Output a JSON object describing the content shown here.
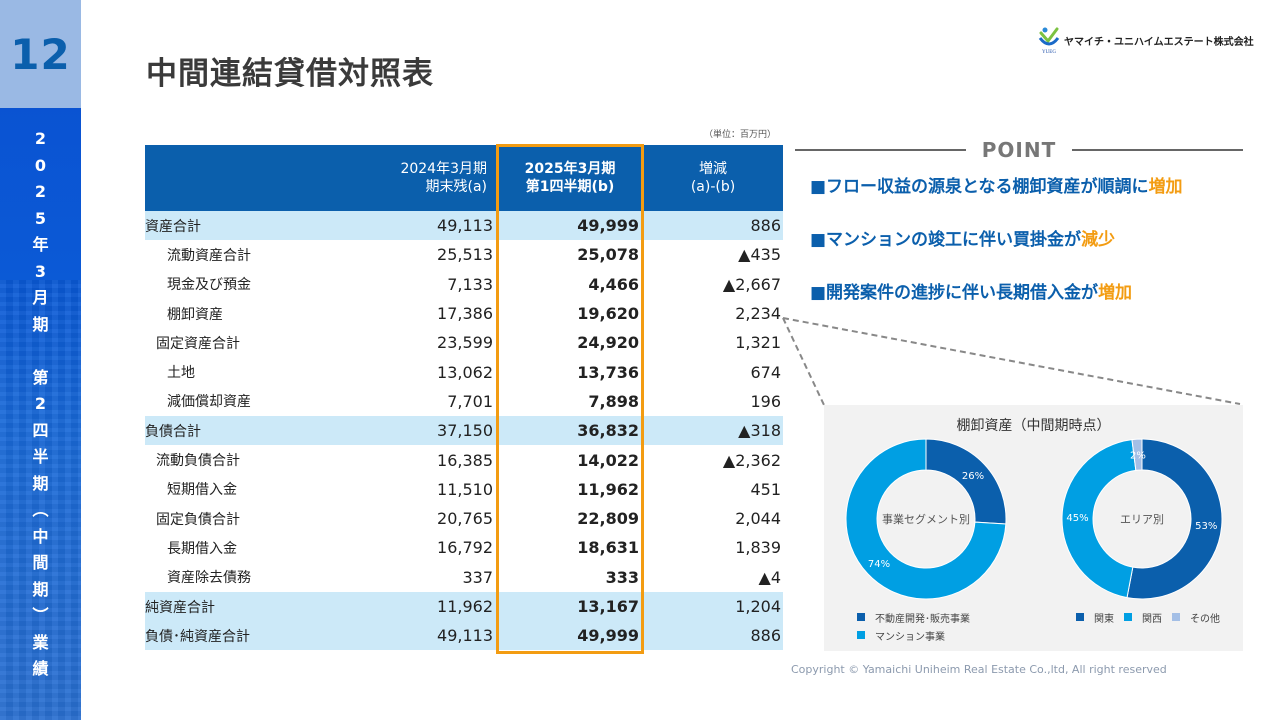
{
  "sidebar": {
    "page_number": "12",
    "vertical_chars": [
      "2",
      "0",
      "2",
      "5",
      "年",
      "3",
      "月",
      "期",
      "",
      "第",
      "2",
      "四",
      "半",
      "期",
      "︵",
      "中",
      "間",
      "期",
      "︶",
      "業",
      "績"
    ]
  },
  "header": {
    "title": "中間連結貸借対照表",
    "company_name": "ヤマイチ・ユニハイムエステート株式会社",
    "logo_text": "YUEG"
  },
  "table": {
    "unit": "（単位：百万円）",
    "headers": {
      "a_line1": "2024年3月期",
      "a_line2": "期末残(a)",
      "b_line1": "2025年3月期",
      "b_line2": "第1四半期(b)",
      "c_line1": "増減",
      "c_line2": "(a)-(b)"
    },
    "rows": [
      {
        "label": "資産合計",
        "level": 0,
        "shade": true,
        "a": "49,113",
        "b": "49,999",
        "c": "886"
      },
      {
        "label": "流動資産合計",
        "level": 2,
        "shade": false,
        "a": "25,513",
        "b": "25,078",
        "c": "▲435"
      },
      {
        "label": "現金及び預金",
        "level": 2,
        "shade": false,
        "a": "7,133",
        "b": "4,466",
        "c": "▲2,667"
      },
      {
        "label": "棚卸資産",
        "level": 2,
        "shade": false,
        "a": "17,386",
        "b": "19,620",
        "c": "2,234"
      },
      {
        "label": "固定資産合計",
        "level": 1,
        "shade": false,
        "a": "23,599",
        "b": "24,920",
        "c": "1,321"
      },
      {
        "label": "土地",
        "level": 2,
        "shade": false,
        "a": "13,062",
        "b": "13,736",
        "c": "674"
      },
      {
        "label": "減価償却資産",
        "level": 2,
        "shade": false,
        "a": "7,701",
        "b": "7,898",
        "c": "196"
      },
      {
        "label": "負債合計",
        "level": 0,
        "shade": true,
        "a": "37,150",
        "b": "36,832",
        "c": "▲318"
      },
      {
        "label": "流動負債合計",
        "level": 1,
        "shade": false,
        "a": "16,385",
        "b": "14,022",
        "c": "▲2,362"
      },
      {
        "label": "短期借入金",
        "level": 2,
        "shade": false,
        "a": "11,510",
        "b": "11,962",
        "c": "451"
      },
      {
        "label": "固定負債合計",
        "level": 1,
        "shade": false,
        "a": "20,765",
        "b": "22,809",
        "c": "2,044"
      },
      {
        "label": "長期借入金",
        "level": 2,
        "shade": false,
        "a": "16,792",
        "b": "18,631",
        "c": "1,839"
      },
      {
        "label": "資産除去債務",
        "level": 2,
        "shade": false,
        "a": "337",
        "b": "333",
        "c": "▲4"
      },
      {
        "label": "純資産合計",
        "level": 0,
        "shade": true,
        "a": "11,962",
        "b": "13,167",
        "c": "1,204"
      },
      {
        "label": "負債･純資産合計",
        "level": 0,
        "shade": true,
        "a": "49,113",
        "b": "49,999",
        "c": "886"
      }
    ]
  },
  "point": {
    "title": "POINT",
    "items": [
      {
        "prefix": "■フロー収益の源泉となる棚卸資産が順調に",
        "accent": "増加"
      },
      {
        "prefix": "■マンションの竣工に伴い買掛金が",
        "accent": "減少"
      },
      {
        "prefix": "■開発案件の進捗に伴い長期借入金が",
        "accent": "増加"
      }
    ]
  },
  "colors": {
    "brand_blue": "#0b5fac",
    "light_blue": "#009fe3",
    "pale_blue": "#a4bfe6",
    "accent_orange": "#f39c12",
    "row_shade": "#cce9f8"
  },
  "chart_data": [
    {
      "type": "pie",
      "title": "棚卸資産（中間期時点）",
      "center_label": "事業セグメント別",
      "categories": [
        "不動産開発･販売事業",
        "マンション事業"
      ],
      "values": [
        26,
        74
      ],
      "labels": [
        "26%",
        "74%"
      ],
      "colors": [
        "#0b5fac",
        "#009fe3"
      ],
      "legend": "bottom"
    },
    {
      "type": "pie",
      "title": "棚卸資産（中間期時点）",
      "center_label": "エリア別",
      "categories": [
        "関東",
        "関西",
        "その他"
      ],
      "values": [
        53,
        45,
        2
      ],
      "labels": [
        "53%",
        "45%",
        "2%"
      ],
      "colors": [
        "#0b5fac",
        "#009fe3",
        "#a4bfe6"
      ],
      "legend": "bottom"
    }
  ],
  "footer": {
    "copyright": "Copyright © Yamaichi Uniheim Real Estate Co.,ltd, All right reserved"
  }
}
